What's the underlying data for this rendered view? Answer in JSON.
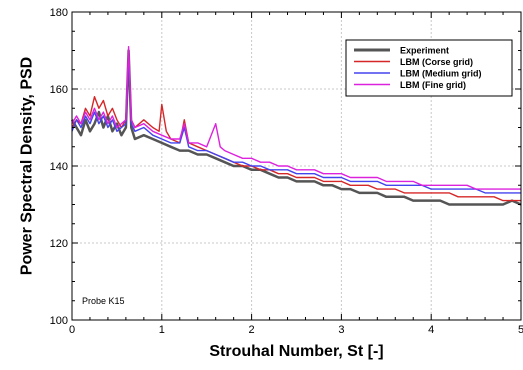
{
  "chart_data": {
    "type": "line",
    "xlabel": "Strouhal Number, St [-]",
    "ylabel": "Power Spectral Density, PSD",
    "xlim": [
      0,
      5
    ],
    "ylim": [
      100,
      180
    ],
    "xticks": [
      0,
      1,
      2,
      3,
      4,
      5
    ],
    "yticks": [
      100,
      120,
      140,
      160,
      180
    ],
    "xtick_labels": [
      "0",
      "1",
      "2",
      "3",
      "4",
      "5"
    ],
    "ytick_labels": [
      "100",
      "120",
      "140",
      "160",
      "180"
    ],
    "grid": true,
    "legend_position": "top-right",
    "annotation": "Probe K15",
    "series": [
      {
        "name": "Experiment",
        "color": "#555555",
        "points": [
          [
            0.0,
            152
          ],
          [
            0.05,
            150
          ],
          [
            0.1,
            148
          ],
          [
            0.15,
            152
          ],
          [
            0.2,
            149
          ],
          [
            0.25,
            151
          ],
          [
            0.3,
            154
          ],
          [
            0.35,
            150
          ],
          [
            0.4,
            153
          ],
          [
            0.45,
            149
          ],
          [
            0.5,
            151
          ],
          [
            0.55,
            148
          ],
          [
            0.6,
            150
          ],
          [
            0.63,
            170
          ],
          [
            0.66,
            150
          ],
          [
            0.7,
            147
          ],
          [
            0.8,
            148
          ],
          [
            0.9,
            147
          ],
          [
            1.0,
            146
          ],
          [
            1.1,
            145
          ],
          [
            1.2,
            144
          ],
          [
            1.3,
            144
          ],
          [
            1.4,
            143
          ],
          [
            1.5,
            143
          ],
          [
            1.6,
            142
          ],
          [
            1.7,
            141
          ],
          [
            1.8,
            140
          ],
          [
            1.9,
            140
          ],
          [
            2.0,
            139
          ],
          [
            2.1,
            139
          ],
          [
            2.2,
            138
          ],
          [
            2.3,
            137
          ],
          [
            2.4,
            137
          ],
          [
            2.5,
            136
          ],
          [
            2.6,
            136
          ],
          [
            2.7,
            136
          ],
          [
            2.8,
            135
          ],
          [
            2.9,
            135
          ],
          [
            3.0,
            134
          ],
          [
            3.1,
            134
          ],
          [
            3.2,
            133
          ],
          [
            3.3,
            133
          ],
          [
            3.4,
            133
          ],
          [
            3.5,
            132
          ],
          [
            3.6,
            132
          ],
          [
            3.7,
            132
          ],
          [
            3.8,
            131
          ],
          [
            3.9,
            131
          ],
          [
            4.0,
            131
          ],
          [
            4.1,
            131
          ],
          [
            4.2,
            130
          ],
          [
            4.3,
            130
          ],
          [
            4.4,
            130
          ],
          [
            4.5,
            130
          ],
          [
            4.6,
            130
          ],
          [
            4.7,
            130
          ],
          [
            4.8,
            130
          ],
          [
            4.9,
            131
          ],
          [
            5.0,
            130
          ]
        ]
      },
      {
        "name": "LBM (Corse grid)",
        "color": "#d62728",
        "points": [
          [
            0.0,
            150
          ],
          [
            0.05,
            152
          ],
          [
            0.1,
            151
          ],
          [
            0.15,
            155
          ],
          [
            0.2,
            153
          ],
          [
            0.25,
            158
          ],
          [
            0.3,
            155
          ],
          [
            0.35,
            157
          ],
          [
            0.4,
            153
          ],
          [
            0.45,
            155
          ],
          [
            0.5,
            152
          ],
          [
            0.55,
            150
          ],
          [
            0.6,
            152
          ],
          [
            0.63,
            170
          ],
          [
            0.66,
            152
          ],
          [
            0.7,
            150
          ],
          [
            0.8,
            152
          ],
          [
            0.9,
            150
          ],
          [
            0.97,
            149
          ],
          [
            1.0,
            156
          ],
          [
            1.05,
            149
          ],
          [
            1.1,
            147
          ],
          [
            1.2,
            146
          ],
          [
            1.25,
            152
          ],
          [
            1.3,
            146
          ],
          [
            1.4,
            145
          ],
          [
            1.5,
            144
          ],
          [
            1.6,
            143
          ],
          [
            1.7,
            142
          ],
          [
            1.8,
            141
          ],
          [
            1.9,
            140
          ],
          [
            2.0,
            140
          ],
          [
            2.1,
            139
          ],
          [
            2.2,
            139
          ],
          [
            2.3,
            138
          ],
          [
            2.4,
            138
          ],
          [
            2.5,
            137
          ],
          [
            2.6,
            137
          ],
          [
            2.7,
            137
          ],
          [
            2.8,
            136
          ],
          [
            2.9,
            136
          ],
          [
            3.0,
            136
          ],
          [
            3.1,
            135
          ],
          [
            3.2,
            135
          ],
          [
            3.3,
            135
          ],
          [
            3.4,
            134
          ],
          [
            3.5,
            134
          ],
          [
            3.6,
            134
          ],
          [
            3.7,
            133
          ],
          [
            3.8,
            133
          ],
          [
            3.9,
            133
          ],
          [
            4.0,
            133
          ],
          [
            4.1,
            133
          ],
          [
            4.2,
            133
          ],
          [
            4.3,
            132
          ],
          [
            4.4,
            132
          ],
          [
            4.5,
            132
          ],
          [
            4.6,
            132
          ],
          [
            4.7,
            132
          ],
          [
            4.8,
            131
          ],
          [
            4.9,
            131
          ],
          [
            5.0,
            131
          ]
        ]
      },
      {
        "name": "LBM (Medium grid)",
        "color": "#4444ee",
        "points": [
          [
            0.0,
            149
          ],
          [
            0.05,
            152
          ],
          [
            0.1,
            150
          ],
          [
            0.15,
            153
          ],
          [
            0.2,
            151
          ],
          [
            0.25,
            154
          ],
          [
            0.3,
            151
          ],
          [
            0.35,
            153
          ],
          [
            0.4,
            150
          ],
          [
            0.45,
            152
          ],
          [
            0.5,
            149
          ],
          [
            0.55,
            150
          ],
          [
            0.6,
            151
          ],
          [
            0.63,
            169
          ],
          [
            0.66,
            151
          ],
          [
            0.7,
            149
          ],
          [
            0.8,
            150
          ],
          [
            0.9,
            148
          ],
          [
            1.0,
            147
          ],
          [
            1.1,
            146
          ],
          [
            1.2,
            146
          ],
          [
            1.25,
            150
          ],
          [
            1.3,
            145
          ],
          [
            1.4,
            144
          ],
          [
            1.5,
            144
          ],
          [
            1.6,
            143
          ],
          [
            1.7,
            142
          ],
          [
            1.8,
            141
          ],
          [
            1.9,
            141
          ],
          [
            2.0,
            140
          ],
          [
            2.1,
            140
          ],
          [
            2.2,
            139
          ],
          [
            2.3,
            139
          ],
          [
            2.4,
            139
          ],
          [
            2.5,
            138
          ],
          [
            2.6,
            138
          ],
          [
            2.7,
            138
          ],
          [
            2.8,
            137
          ],
          [
            2.9,
            137
          ],
          [
            3.0,
            137
          ],
          [
            3.1,
            136
          ],
          [
            3.2,
            136
          ],
          [
            3.3,
            136
          ],
          [
            3.4,
            136
          ],
          [
            3.5,
            135
          ],
          [
            3.6,
            135
          ],
          [
            3.7,
            135
          ],
          [
            3.8,
            135
          ],
          [
            3.9,
            135
          ],
          [
            4.0,
            134
          ],
          [
            4.1,
            134
          ],
          [
            4.2,
            134
          ],
          [
            4.3,
            134
          ],
          [
            4.4,
            134
          ],
          [
            4.5,
            134
          ],
          [
            4.6,
            133
          ],
          [
            4.7,
            133
          ],
          [
            4.8,
            133
          ],
          [
            4.9,
            133
          ],
          [
            5.0,
            133
          ]
        ]
      },
      {
        "name": "LBM (Fine grid)",
        "color": "#dd22dd",
        "points": [
          [
            0.0,
            151
          ],
          [
            0.05,
            153
          ],
          [
            0.1,
            151
          ],
          [
            0.15,
            154
          ],
          [
            0.2,
            152
          ],
          [
            0.25,
            155
          ],
          [
            0.3,
            152
          ],
          [
            0.35,
            154
          ],
          [
            0.4,
            151
          ],
          [
            0.45,
            153
          ],
          [
            0.5,
            150
          ],
          [
            0.55,
            151
          ],
          [
            0.6,
            152
          ],
          [
            0.63,
            171
          ],
          [
            0.66,
            152
          ],
          [
            0.7,
            150
          ],
          [
            0.8,
            151
          ],
          [
            0.9,
            149
          ],
          [
            1.0,
            148
          ],
          [
            1.1,
            147
          ],
          [
            1.2,
            147
          ],
          [
            1.25,
            151
          ],
          [
            1.3,
            146
          ],
          [
            1.4,
            146
          ],
          [
            1.5,
            145
          ],
          [
            1.6,
            151
          ],
          [
            1.65,
            145
          ],
          [
            1.7,
            144
          ],
          [
            1.8,
            143
          ],
          [
            1.9,
            142
          ],
          [
            2.0,
            142
          ],
          [
            2.1,
            141
          ],
          [
            2.2,
            141
          ],
          [
            2.3,
            140
          ],
          [
            2.4,
            140
          ],
          [
            2.5,
            139
          ],
          [
            2.6,
            139
          ],
          [
            2.7,
            139
          ],
          [
            2.8,
            138
          ],
          [
            2.9,
            138
          ],
          [
            3.0,
            138
          ],
          [
            3.1,
            137
          ],
          [
            3.2,
            137
          ],
          [
            3.3,
            137
          ],
          [
            3.4,
            137
          ],
          [
            3.5,
            136
          ],
          [
            3.6,
            136
          ],
          [
            3.7,
            136
          ],
          [
            3.8,
            136
          ],
          [
            3.9,
            135
          ],
          [
            4.0,
            135
          ],
          [
            4.1,
            135
          ],
          [
            4.2,
            135
          ],
          [
            4.3,
            135
          ],
          [
            4.4,
            135
          ],
          [
            4.5,
            134
          ],
          [
            4.6,
            134
          ],
          [
            4.7,
            134
          ],
          [
            4.8,
            134
          ],
          [
            4.9,
            134
          ],
          [
            5.0,
            134
          ]
        ]
      }
    ]
  }
}
